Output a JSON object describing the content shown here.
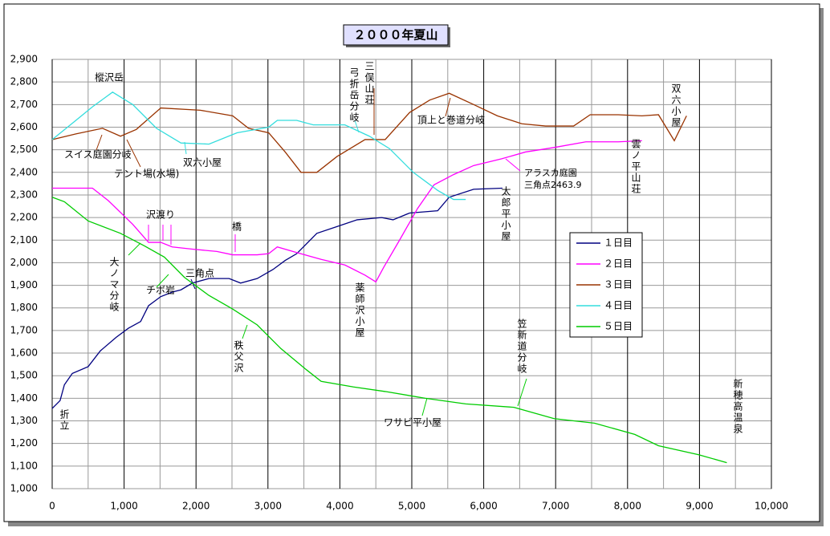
{
  "chart_data": {
    "type": "line",
    "title": "２０００年夏山",
    "xlim": [
      0,
      10000
    ],
    "xticks": [
      0,
      {
        "value": 1000,
        "label": "1,000"
      },
      {
        "value": 2000,
        "label": "2,000"
      },
      {
        "value": 3000,
        "label": "3,000"
      },
      {
        "value": 4000,
        "label": "4,000"
      },
      {
        "value": 5000,
        "label": "5,000"
      },
      {
        "value": 6000,
        "label": "6,000"
      },
      {
        "value": 7000,
        "label": "7,000"
      },
      {
        "value": 8000,
        "label": "8,000"
      },
      {
        "value": 9000,
        "label": "9,000"
      },
      {
        "value": 10000,
        "label": "10,000"
      }
    ],
    "xminor": [
      500,
      1500,
      2500,
      3500,
      4500,
      5500,
      6500,
      7500,
      8500,
      9500
    ],
    "ylim": [
      1000,
      2900
    ],
    "yticks": [
      {
        "value": 1000,
        "label": "1,000"
      },
      {
        "value": 1100,
        "label": "1,100"
      },
      {
        "value": 1200,
        "label": "1,200"
      },
      {
        "value": 1300,
        "label": "1,300"
      },
      {
        "value": 1400,
        "label": "1,400"
      },
      {
        "value": 1500,
        "label": "1,500"
      },
      {
        "value": 1600,
        "label": "1,600"
      },
      {
        "value": 1700,
        "label": "1,700"
      },
      {
        "value": 1800,
        "label": "1,800"
      },
      {
        "value": 1900,
        "label": "1,900"
      },
      {
        "value": 2000,
        "label": "2,000"
      },
      {
        "value": 2100,
        "label": "2,100"
      },
      {
        "value": 2200,
        "label": "2,200"
      },
      {
        "value": 2300,
        "label": "2,300"
      },
      {
        "value": 2400,
        "label": "2,400"
      },
      {
        "value": 2500,
        "label": "2,500"
      },
      {
        "value": 2600,
        "label": "2,600"
      },
      {
        "value": 2700,
        "label": "2,700"
      },
      {
        "value": 2800,
        "label": "2,800"
      },
      {
        "value": 2900,
        "label": "2,900"
      }
    ],
    "grid": true,
    "legend": "right",
    "series": [
      {
        "name": "１日目",
        "color": "#000080",
        "x": [
          0,
          110,
          170,
          280,
          500,
          670,
          890,
          1060,
          1230,
          1340,
          1510,
          1670,
          1790,
          1950,
          2180,
          2460,
          2620,
          2850,
          3070,
          3240,
          3400,
          3680,
          3960,
          4240,
          4580,
          4740,
          4970,
          5360,
          5520,
          5860,
          6260
        ],
        "values": [
          1355,
          1390,
          1460,
          1510,
          1540,
          1610,
          1670,
          1710,
          1740,
          1810,
          1850,
          1870,
          1880,
          1910,
          1930,
          1930,
          1910,
          1930,
          1970,
          2010,
          2040,
          2130,
          2160,
          2190,
          2200,
          2190,
          2220,
          2230,
          2290,
          2325,
          2330
        ]
      },
      {
        "name": "２日目",
        "color": "#ff00ff",
        "x": [
          0,
          560,
          780,
          1120,
          1340,
          1510,
          1670,
          1950,
          2290,
          2510,
          2850,
          3010,
          3130,
          3400,
          3740,
          4070,
          4350,
          4500,
          4610,
          4830,
          5080,
          5310,
          5580,
          5860,
          6250,
          6580,
          6980,
          7420,
          7870,
          8200
        ],
        "values": [
          2330,
          2330,
          2275,
          2170,
          2090,
          2090,
          2070,
          2060,
          2050,
          2035,
          2035,
          2040,
          2070,
          2045,
          2015,
          1990,
          1945,
          1915,
          1980,
          2100,
          2240,
          2345,
          2390,
          2430,
          2460,
          2490,
          2510,
          2535,
          2535,
          2540
        ]
      },
      {
        "name": "３日目",
        "color": "#993300",
        "x": [
          0,
          330,
          700,
          950,
          1170,
          1510,
          2060,
          2510,
          2730,
          3010,
          3240,
          3460,
          3680,
          3960,
          4350,
          4630,
          4970,
          5250,
          5520,
          5860,
          6190,
          6530,
          6860,
          7250,
          7480,
          7870,
          8200,
          8430,
          8650,
          8820
        ],
        "values": [
          2545,
          2570,
          2595,
          2560,
          2590,
          2685,
          2675,
          2650,
          2595,
          2575,
          2490,
          2400,
          2400,
          2470,
          2545,
          2545,
          2665,
          2720,
          2750,
          2700,
          2650,
          2615,
          2605,
          2605,
          2655,
          2655,
          2650,
          2655,
          2540,
          2650
        ]
      },
      {
        "name": "４日目",
        "color": "#33dddd",
        "x": [
          0,
          330,
          560,
          840,
          1120,
          1450,
          1790,
          2180,
          2570,
          3010,
          3130,
          3400,
          3630,
          4070,
          4410,
          4690,
          5020,
          5360,
          5580,
          5750
        ],
        "values": [
          2545,
          2630,
          2690,
          2755,
          2700,
          2595,
          2530,
          2525,
          2575,
          2600,
          2630,
          2630,
          2610,
          2610,
          2560,
          2505,
          2400,
          2320,
          2280,
          2280
        ]
      },
      {
        "name": "５日目",
        "color": "#00cc00",
        "x": [
          0,
          170,
          500,
          950,
          1280,
          1560,
          1840,
          2180,
          2510,
          2850,
          3180,
          3520,
          3740,
          4190,
          4630,
          5190,
          5750,
          6420,
          6980,
          7540,
          8100,
          8430,
          8990,
          9380
        ],
        "values": [
          2290,
          2270,
          2185,
          2130,
          2075,
          2025,
          1935,
          1855,
          1795,
          1725,
          1620,
          1530,
          1475,
          1450,
          1430,
          1400,
          1375,
          1360,
          1310,
          1290,
          1240,
          1190,
          1150,
          1115
        ]
      }
    ],
    "annotations": [
      "樅沢岳",
      "スイス庭園分岐",
      "テント場(水場)",
      "双六小屋",
      "三俣山荘",
      "弓折岳分岐",
      "頂上と巻道分岐",
      "双六小屋",
      "雲ノ平山荘",
      "アラスカ庭園",
      "三角点2463.9",
      "太郎平小屋",
      "沢渡り",
      "橋",
      "大ノマ分岐",
      "チボ岩",
      "三角点",
      "薬師沢小屋",
      "秩父沢",
      "笠新道分岐",
      "ワサビ平小屋",
      "新穂高温泉",
      "折立"
    ]
  }
}
